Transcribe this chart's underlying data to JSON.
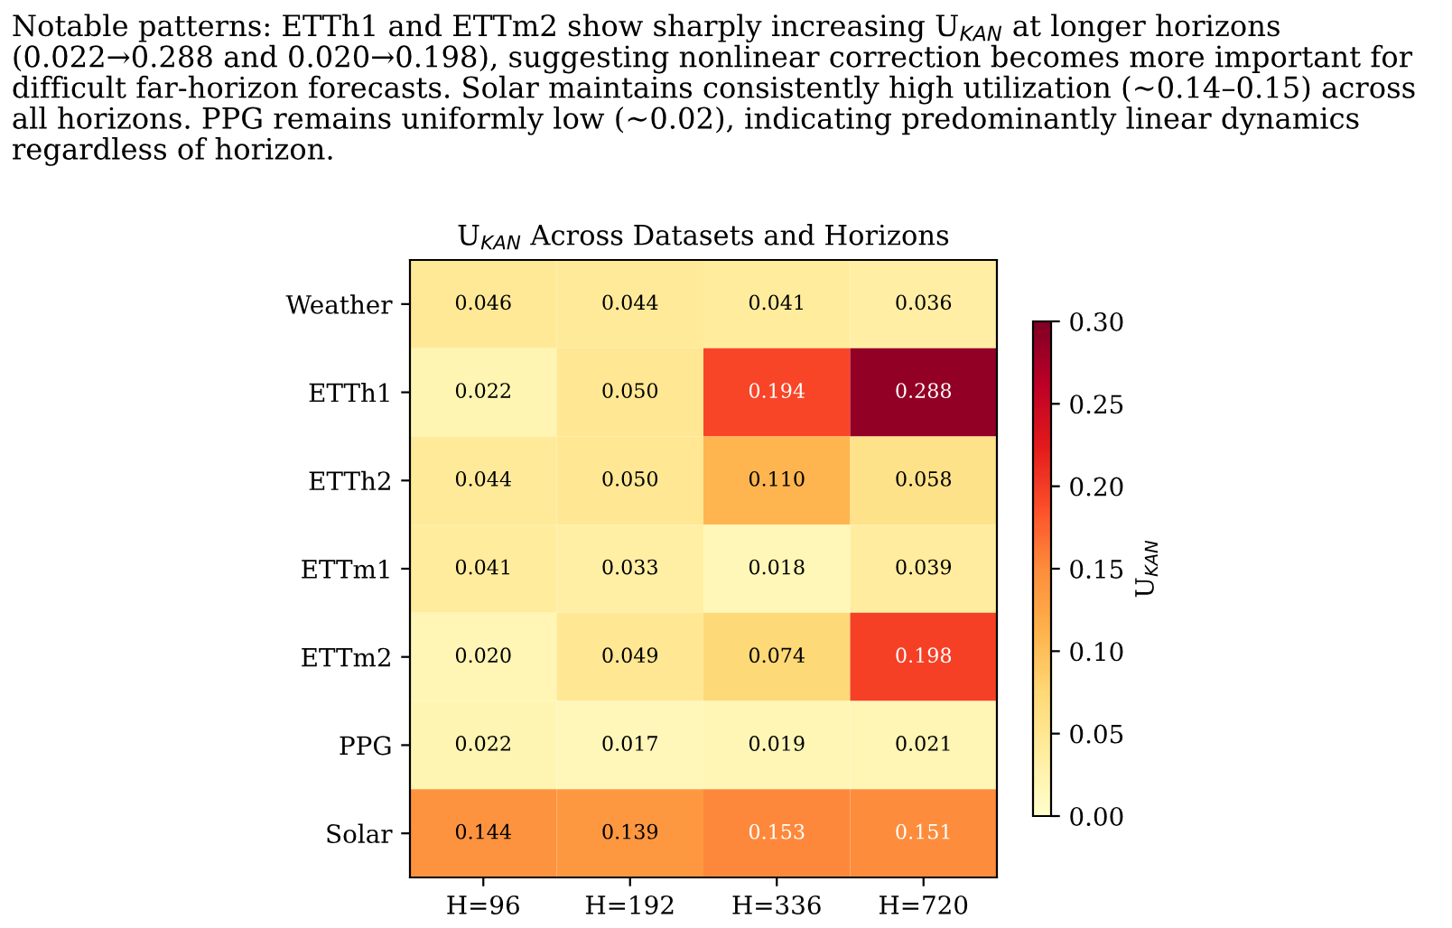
{
  "chart_data": {
    "type": "heatmap",
    "title": "U$_{KAN}$ Across Datasets and Horizons",
    "categories": [
      "H=96",
      "H=192",
      "H=336",
      "H=720"
    ],
    "y_categories": [
      "Weather",
      "ETTh1",
      "ETTh2",
      "ETTm1",
      "ETTm2",
      "PPG",
      "Solar"
    ],
    "cells": [
      [
        0.046,
        0.044,
        0.041,
        0.036
      ],
      [
        0.022,
        0.05,
        0.194,
        0.288
      ],
      [
        0.044,
        0.05,
        0.11,
        0.058
      ],
      [
        0.041,
        0.033,
        0.018,
        0.039
      ],
      [
        0.02,
        0.049,
        0.074,
        0.198
      ],
      [
        0.022,
        0.017,
        0.019,
        0.021
      ],
      [
        0.144,
        0.139,
        0.153,
        0.151
      ]
    ],
    "cell_labels": [
      [
        "0.046",
        "0.044",
        "0.041",
        "0.036"
      ],
      [
        "0.022",
        "0.050",
        "0.194",
        "0.288"
      ],
      [
        "0.044",
        "0.050",
        "0.110",
        "0.058"
      ],
      [
        "0.041",
        "0.033",
        "0.018",
        "0.039"
      ],
      [
        "0.020",
        "0.049",
        "0.074",
        "0.198"
      ],
      [
        "0.022",
        "0.017",
        "0.019",
        "0.021"
      ],
      [
        "0.144",
        "0.139",
        "0.153",
        "0.151"
      ]
    ],
    "clim": [
      0,
      0.3
    ],
    "cticks": [
      {
        "value": 0,
        "label": "0.00"
      },
      {
        "value": 0.05,
        "label": "0.05"
      },
      {
        "value": 0.1,
        "label": "0.10"
      },
      {
        "value": 0.15,
        "label": "0.15"
      },
      {
        "value": 0.2,
        "label": "0.20"
      },
      {
        "value": 0.25,
        "label": "0.25"
      },
      {
        "value": 0.3,
        "label": "0.30"
      }
    ],
    "clabel": "U$_{KAN}$",
    "annotations": [
      "Notable patterns: ETTh1 and ETTm2 show sharply increasing U$_{KAN}$ at longer horizons (0.022→0.288 and 0.020→0.198), suggesting nonlinear correction becomes more important for difficult far-horizon forecasts. Solar maintains consistently high utilization (∼0.14–0.15) across all horizons. PPG remains uniformly low (∼0.02), indicating predominantly linear dynamics regardless of horizon."
    ]
  }
}
